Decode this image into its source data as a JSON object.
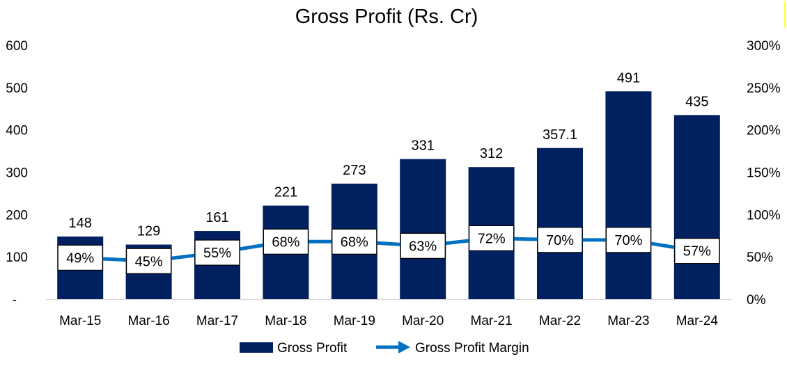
{
  "chart_data": {
    "type": "bar",
    "title": "Gross Profit (Rs. Cr)",
    "categories": [
      "Mar-15",
      "Mar-16",
      "Mar-17",
      "Mar-18",
      "Mar-19",
      "Mar-20",
      "Mar-21",
      "Mar-22",
      "Mar-23",
      "Mar-24"
    ],
    "series": [
      {
        "name": "Gross Profit",
        "type": "bar",
        "axis": "left",
        "color": "#002060",
        "values": [
          148,
          129,
          161,
          221,
          273,
          331,
          312,
          357.1,
          491,
          435
        ],
        "labels": [
          "148",
          "129",
          "161",
          "221",
          "273",
          "331",
          "312",
          "357.1",
          "491",
          "435"
        ]
      },
      {
        "name": "Gross Profit Margin",
        "type": "line",
        "axis": "right",
        "color": "#0070C0",
        "values": [
          49,
          45,
          55,
          68,
          68,
          63,
          72,
          70,
          70,
          57
        ],
        "labels": [
          "49%",
          "45%",
          "55%",
          "68%",
          "68%",
          "63%",
          "72%",
          "70%",
          "70%",
          "57%"
        ]
      }
    ],
    "y_left": {
      "ylim": [
        0,
        600
      ],
      "ticks": [
        0,
        100,
        200,
        300,
        400,
        500,
        600
      ],
      "tick_labels": [
        "-",
        "100",
        "200",
        "300",
        "400",
        "500",
        "600"
      ]
    },
    "y_right": {
      "ylim": [
        0,
        300
      ],
      "ticks": [
        0,
        50,
        100,
        150,
        200,
        250,
        300
      ],
      "tick_labels": [
        "0%",
        "50%",
        "100%",
        "150%",
        "200%",
        "250%",
        "300%"
      ]
    },
    "grid": false,
    "legend": "bottom"
  }
}
